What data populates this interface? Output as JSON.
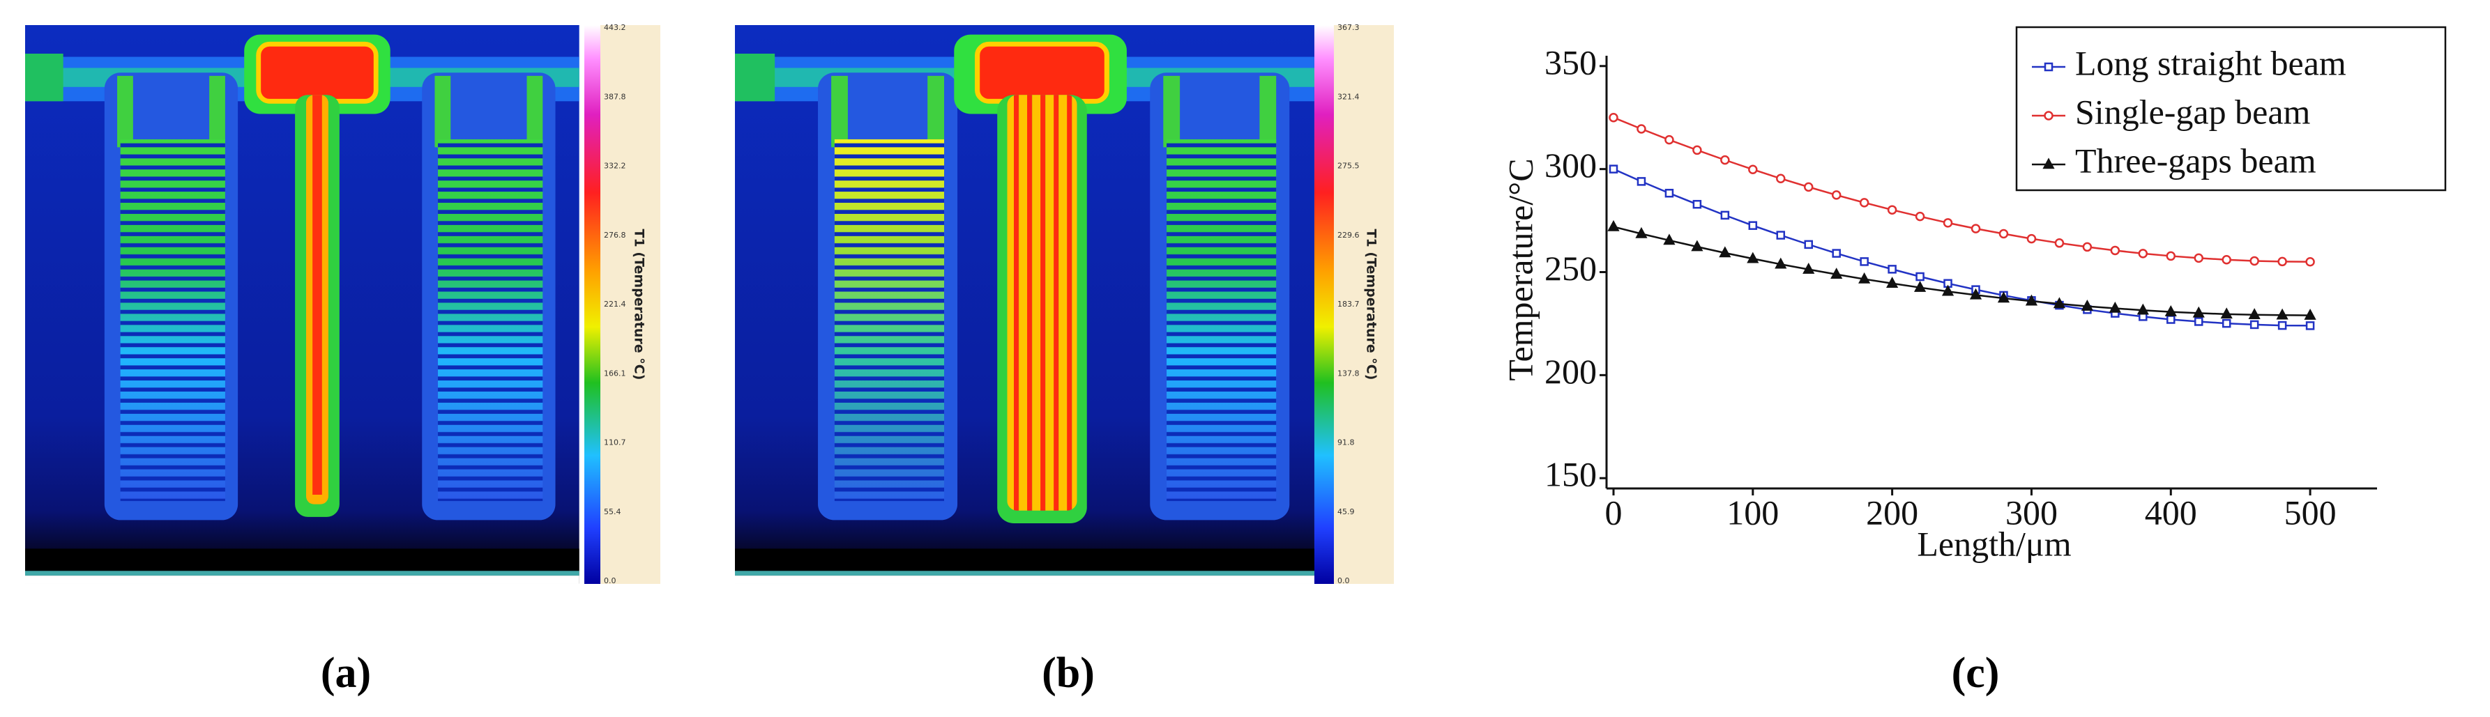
{
  "panel_a": {
    "label": "(a)",
    "colorbar": {
      "title": "T1 (Temperature °C)",
      "tick_labels": [
        "443.2",
        "387.8",
        "332.2",
        "276.8",
        "221.4",
        "166.1",
        "110.7",
        "55.4",
        "0.0"
      ]
    }
  },
  "panel_b": {
    "label": "(b)",
    "colorbar": {
      "title": "T1 (Temperature °C)",
      "tick_labels": [
        "367.3",
        "321.4",
        "275.5",
        "229.6",
        "183.7",
        "137.8",
        "91.8",
        "45.9",
        "0.0"
      ]
    }
  },
  "chart_data": {
    "type": "line",
    "label": "(c)",
    "x_label": "Length/μm",
    "y_label": "Temperature/°C",
    "x": [
      0,
      20,
      40,
      60,
      80,
      100,
      120,
      140,
      160,
      180,
      200,
      220,
      240,
      260,
      280,
      300,
      320,
      340,
      360,
      380,
      400,
      420,
      440,
      460,
      480,
      500
    ],
    "series": [
      {
        "name": "Long straight beam",
        "color": "#2233c4",
        "marker": "square",
        "values": [
          300,
          294.0,
          288.3,
          282.9,
          277.6,
          272.6,
          267.9,
          263.4,
          259.1,
          255.1,
          251.4,
          247.8,
          244.5,
          241.5,
          238.7,
          236.2,
          233.9,
          231.8,
          230.0,
          228.4,
          227.0,
          226.0,
          225.1,
          224.5,
          224.1,
          224.0
        ]
      },
      {
        "name": "Single-gap beam",
        "color": "#e03030",
        "marker": "circle",
        "values": [
          325,
          319.5,
          314.2,
          309.2,
          304.4,
          299.8,
          295.4,
          291.3,
          287.4,
          283.7,
          280.2,
          277.0,
          273.9,
          271.1,
          268.6,
          266.2,
          264.1,
          262.2,
          260.5,
          259.0,
          257.8,
          256.8,
          256.0,
          255.4,
          255.1,
          255.0
        ]
      },
      {
        "name": "Three-gaps beam",
        "color": "#111111",
        "marker": "triangle",
        "values": [
          272,
          268.6,
          265.4,
          262.3,
          259.3,
          256.5,
          253.8,
          251.3,
          248.9,
          246.6,
          244.5,
          242.5,
          240.6,
          238.9,
          237.3,
          235.9,
          234.6,
          233.4,
          232.4,
          231.5,
          230.7,
          230.1,
          229.6,
          229.3,
          229.1,
          229.0
        ]
      }
    ],
    "xlim": [
      -5,
      548
    ],
    "ylim": [
      145,
      355
    ],
    "xticks": [
      0,
      100,
      200,
      300,
      400,
      500
    ],
    "yticks": [
      150,
      200,
      250,
      300,
      350
    ],
    "legend": "upper right"
  }
}
